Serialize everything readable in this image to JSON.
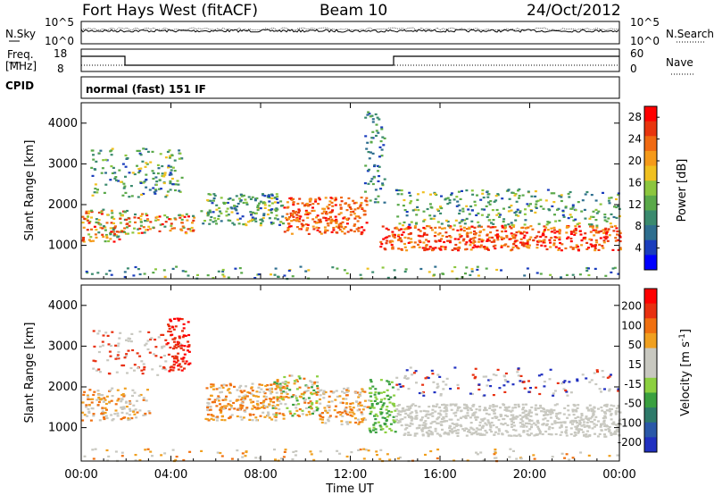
{
  "header": {
    "station": "Fort Hays West (fitACF)",
    "beam": "Beam 10",
    "date": "24/Oct/2012"
  },
  "top_panels": {
    "nsky_label": "N.Sky",
    "nsearch_label": "N.Search",
    "freq_label_1": "Freq.",
    "freq_label_2": "[MHz]",
    "nave_label": "Nave",
    "cpid_label": "CPID",
    "cpid_value": "normal (fast) 151 IF",
    "noise_left_ticks": [
      "10^5",
      "10^0"
    ],
    "noise_right_ticks": [
      "10^5",
      "10^0"
    ],
    "freq_left_ticks": [
      "18",
      "8"
    ],
    "freq_right_ticks": [
      "60",
      "0"
    ]
  },
  "colors": {
    "power_scale": [
      "#0000ff",
      "#1a3dbd",
      "#2e6e8f",
      "#3a8a6e",
      "#5aa94a",
      "#8cc63e",
      "#f0c020",
      "#f59a1a",
      "#f06a12",
      "#e8350e",
      "#ff0000"
    ],
    "velocity_scale": [
      "#2030c0",
      "#2a58a8",
      "#2e7a6a",
      "#3aa040",
      "#8cd040",
      "#c8c8c0",
      "#c8c8c0",
      "#f0a020",
      "#f07010",
      "#e83010",
      "#ff0000"
    ]
  },
  "chart_data": [
    {
      "type": "heatmap",
      "title": "Power",
      "xlabel": "Time UT",
      "ylabel": "Slant Range [km]",
      "x_ticks": [
        "00:00",
        "04:00",
        "08:00",
        "12:00",
        "16:00",
        "20:00",
        "00:00"
      ],
      "y_ticks": [
        "1000",
        "2000",
        "3000",
        "4000"
      ],
      "ylim": [
        180,
        4500
      ],
      "colorbar_label": "Power [dB]",
      "colorbar_ticks": [
        "4",
        "8",
        "12",
        "16",
        "20",
        "24",
        "28"
      ],
      "colorbar_range": [
        0,
        30
      ]
    },
    {
      "type": "heatmap",
      "title": "Velocity",
      "xlabel": "Time UT",
      "ylabel": "Slant Range [km]",
      "x_ticks": [
        "00:00",
        "04:00",
        "08:00",
        "12:00",
        "16:00",
        "20:00",
        "00:00"
      ],
      "y_ticks": [
        "1000",
        "2000",
        "3000",
        "4000"
      ],
      "ylim": [
        180,
        4500
      ],
      "colorbar_label": "Velocity [m s",
      "colorbar_label_sup": "-1",
      "colorbar_label_end": "]",
      "colorbar_ticks": [
        "200",
        "100",
        "50",
        "15",
        "-15",
        "-50",
        "-100",
        "-200"
      ]
    }
  ]
}
